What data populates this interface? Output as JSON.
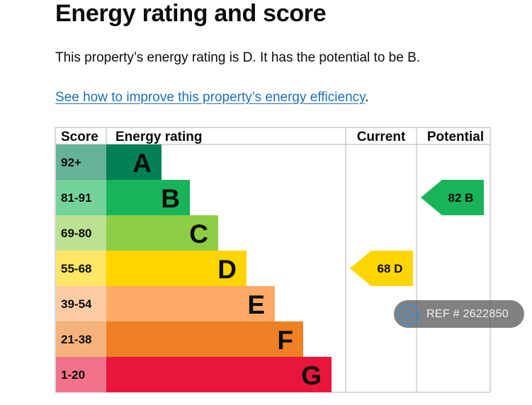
{
  "heading": "Energy rating and score",
  "summary_text": "This property’s energy rating is D. It has the potential to be B.",
  "improve_link_text": "See how to improve this property’s energy efficiency",
  "improve_link_suffix": ".",
  "reference": "REF # 2622850",
  "icons": {
    "reference": "home-icon"
  },
  "chart_data": {
    "type": "bar",
    "columns": [
      "Score",
      "Energy rating",
      "Current",
      "Potential"
    ],
    "bands": [
      {
        "score": "92+",
        "rating": "A",
        "color": "#008054",
        "score_color": "#66b398",
        "order": 1
      },
      {
        "score": "81-91",
        "rating": "B",
        "color": "#19b459",
        "score_color": "#75d29b",
        "order": 2
      },
      {
        "score": "69-80",
        "rating": "C",
        "color": "#8dce46",
        "score_color": "#bbe290",
        "order": 3
      },
      {
        "score": "55-68",
        "rating": "D",
        "color": "#ffd500",
        "score_color": "#ffe666",
        "order": 4
      },
      {
        "score": "39-54",
        "rating": "E",
        "color": "#fcaa65",
        "score_color": "#fdcca3",
        "order": 5
      },
      {
        "score": "21-38",
        "rating": "F",
        "color": "#ef8023",
        "score_color": "#f5b37b",
        "order": 6
      },
      {
        "score": "1-20",
        "rating": "G",
        "color": "#e9153b",
        "score_color": "#f27389",
        "order": 7
      }
    ],
    "current": {
      "score": 68,
      "rating": "D",
      "label": "68  D",
      "color": "#ffd500"
    },
    "potential": {
      "score": 82,
      "rating": "B",
      "label": "82  B",
      "color": "#19b459"
    }
  }
}
